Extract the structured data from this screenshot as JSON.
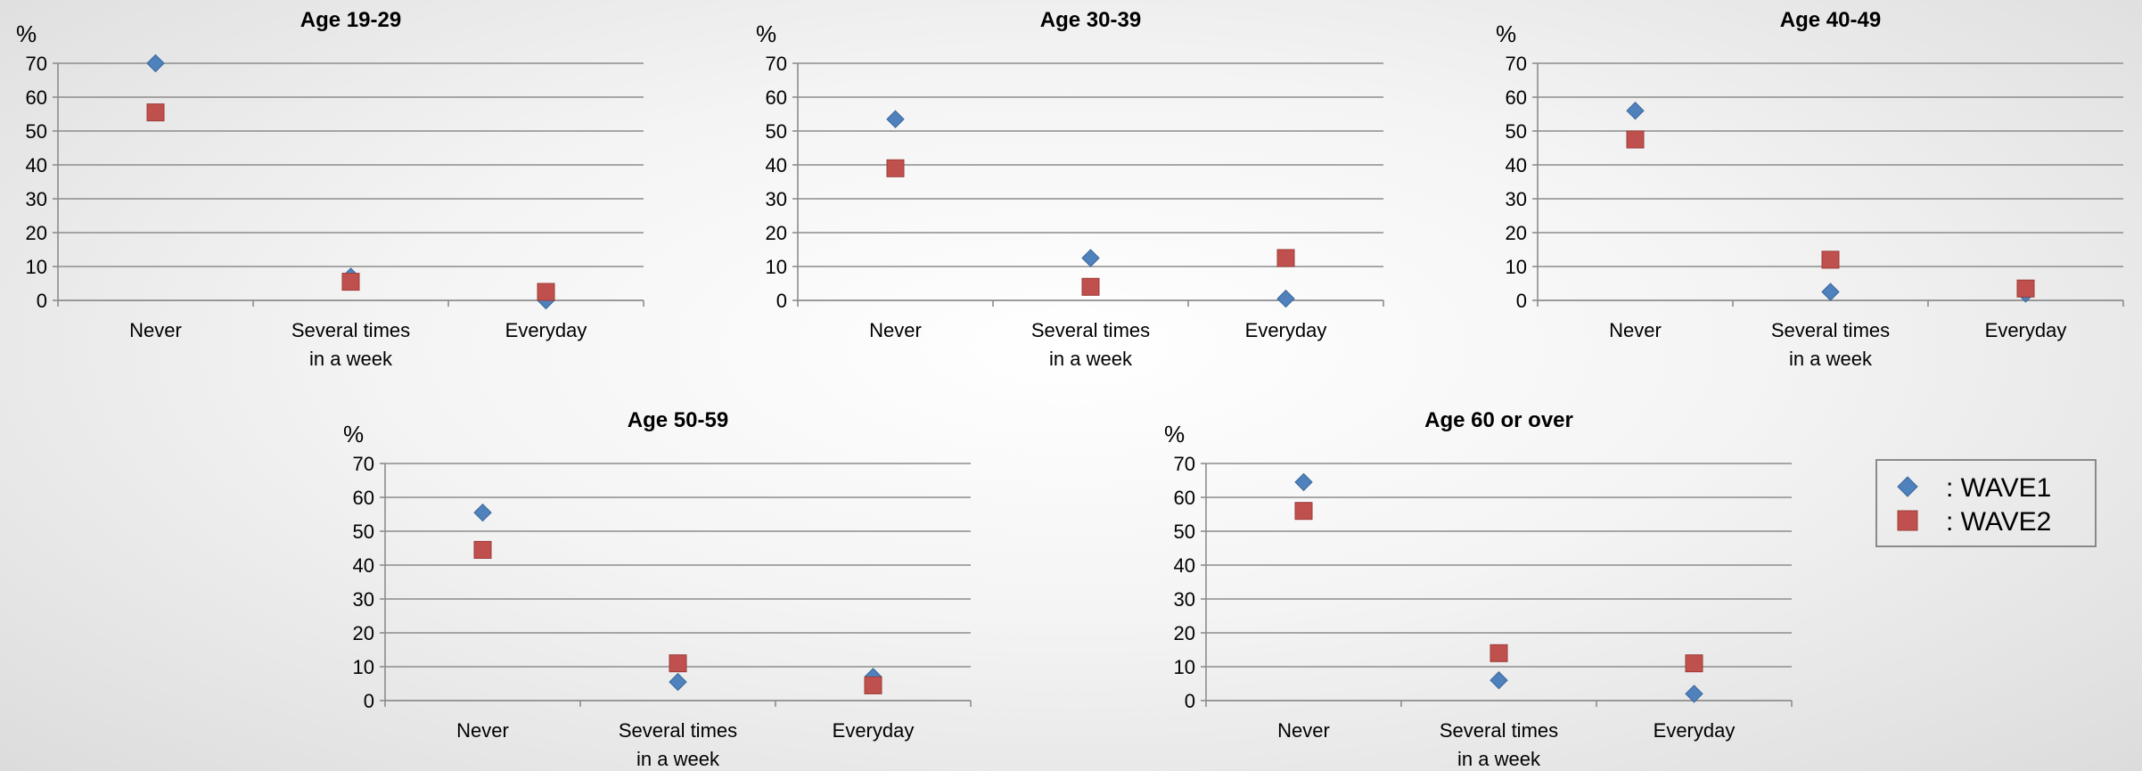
{
  "legend": [
    {
      "marker": "diamond",
      "color": "#4f81bd",
      "label": ": WAVE1"
    },
    {
      "marker": "square",
      "color": "#c0504d",
      "label": ": WAVE2"
    }
  ],
  "chart_data": [
    {
      "type": "scatter",
      "title": "Age 19-29",
      "ylabel": "%",
      "ylim": [
        0,
        70
      ],
      "yticks": [
        0,
        10,
        20,
        30,
        40,
        50,
        60,
        70
      ],
      "grid": true,
      "categories": [
        [
          "Never"
        ],
        [
          "Several times",
          "in a week"
        ],
        [
          "Everyday"
        ]
      ],
      "series": [
        {
          "name": "WAVE1",
          "values": [
            70,
            7,
            0
          ]
        },
        {
          "name": "WAVE2",
          "values": [
            55.5,
            5.5,
            2.5
          ]
        }
      ]
    },
    {
      "type": "scatter",
      "title": "Age 30-39",
      "ylabel": "%",
      "ylim": [
        0,
        70
      ],
      "yticks": [
        0,
        10,
        20,
        30,
        40,
        50,
        60,
        70
      ],
      "grid": true,
      "categories": [
        [
          "Never"
        ],
        [
          "Several times",
          "in a week"
        ],
        [
          "Everyday"
        ]
      ],
      "series": [
        {
          "name": "WAVE1",
          "values": [
            53.5,
            12.5,
            0.5
          ]
        },
        {
          "name": "WAVE2",
          "values": [
            39,
            4,
            12.5
          ]
        }
      ]
    },
    {
      "type": "scatter",
      "title": "Age 40-49",
      "ylabel": "%",
      "ylim": [
        0,
        70
      ],
      "yticks": [
        0,
        10,
        20,
        30,
        40,
        50,
        60,
        70
      ],
      "grid": true,
      "categories": [
        [
          "Never"
        ],
        [
          "Several times",
          "in a week"
        ],
        [
          "Everyday"
        ]
      ],
      "series": [
        {
          "name": "WAVE1",
          "values": [
            56,
            2.5,
            2
          ]
        },
        {
          "name": "WAVE2",
          "values": [
            47.5,
            12,
            3.5
          ]
        }
      ]
    },
    {
      "type": "scatter",
      "title": "Age 50-59",
      "ylabel": "%",
      "ylim": [
        0,
        70
      ],
      "yticks": [
        0,
        10,
        20,
        30,
        40,
        50,
        60,
        70
      ],
      "grid": true,
      "categories": [
        [
          "Never"
        ],
        [
          "Several times",
          "in a week"
        ],
        [
          "Everyday"
        ]
      ],
      "series": [
        {
          "name": "WAVE1",
          "values": [
            55.5,
            5.5,
            7
          ]
        },
        {
          "name": "WAVE2",
          "values": [
            44.5,
            11,
            4.5
          ]
        }
      ]
    },
    {
      "type": "scatter",
      "title": "Age 60 or over",
      "ylabel": "%",
      "ylim": [
        0,
        70
      ],
      "yticks": [
        0,
        10,
        20,
        30,
        40,
        50,
        60,
        70
      ],
      "grid": true,
      "categories": [
        [
          "Never"
        ],
        [
          "Several times",
          "in a week"
        ],
        [
          "Everyday"
        ]
      ],
      "series": [
        {
          "name": "WAVE1",
          "values": [
            64.5,
            6,
            2
          ]
        },
        {
          "name": "WAVE2",
          "values": [
            56,
            14,
            11
          ]
        }
      ]
    }
  ]
}
